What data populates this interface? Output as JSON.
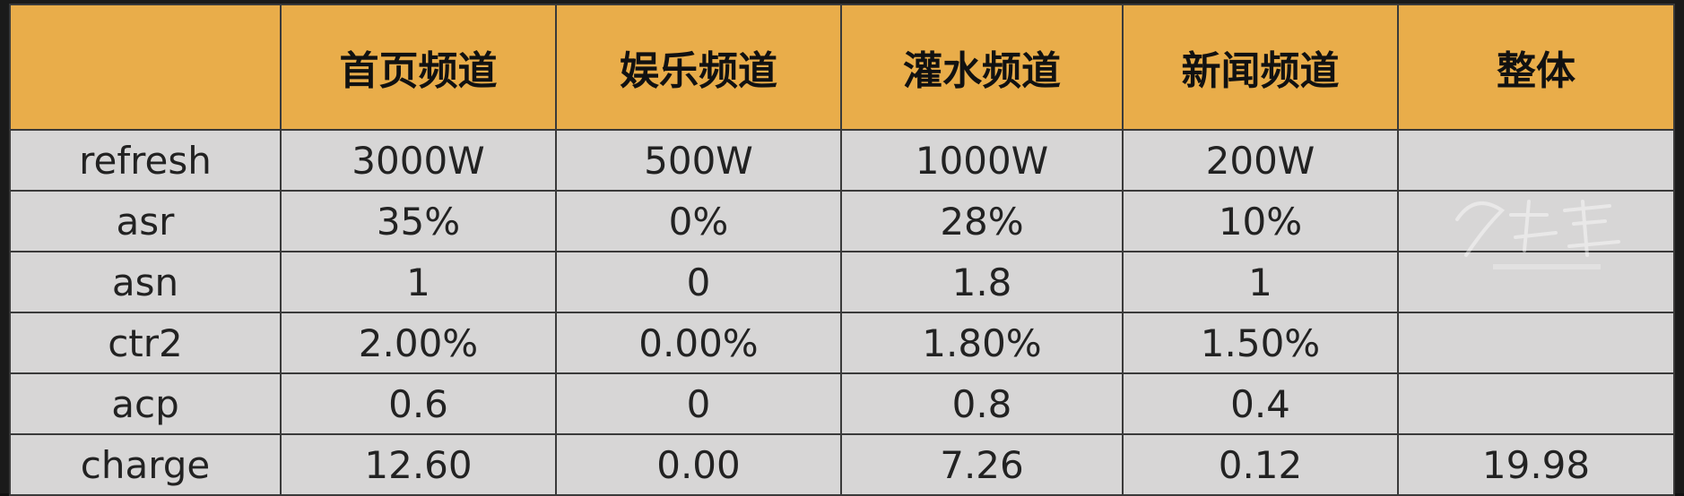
{
  "table": {
    "headers": [
      "",
      "首页频道",
      "娱乐频道",
      "灌水频道",
      "新闻频道",
      "整体"
    ],
    "rows": [
      {
        "label": "refresh",
        "cells": [
          "3000W",
          "500W",
          "1000W",
          "200W",
          ""
        ]
      },
      {
        "label": "asr",
        "cells": [
          "35%",
          "0%",
          "28%",
          "10%",
          ""
        ]
      },
      {
        "label": "asn",
        "cells": [
          "1",
          "0",
          "1.8",
          "1",
          ""
        ]
      },
      {
        "label": "ctr2",
        "cells": [
          "2.00%",
          "0.00%",
          "1.80%",
          "1.50%",
          ""
        ]
      },
      {
        "label": "acp",
        "cells": [
          "0.6",
          "0",
          "0.8",
          "0.4",
          ""
        ]
      },
      {
        "label": "charge",
        "cells": [
          "12.60",
          "0.00",
          "7.26",
          "0.12",
          "19.98"
        ]
      }
    ]
  },
  "colors": {
    "header_bg": "#e9ad4a",
    "body_bg": "#d7d6d6",
    "border": "#3a3a3a"
  }
}
